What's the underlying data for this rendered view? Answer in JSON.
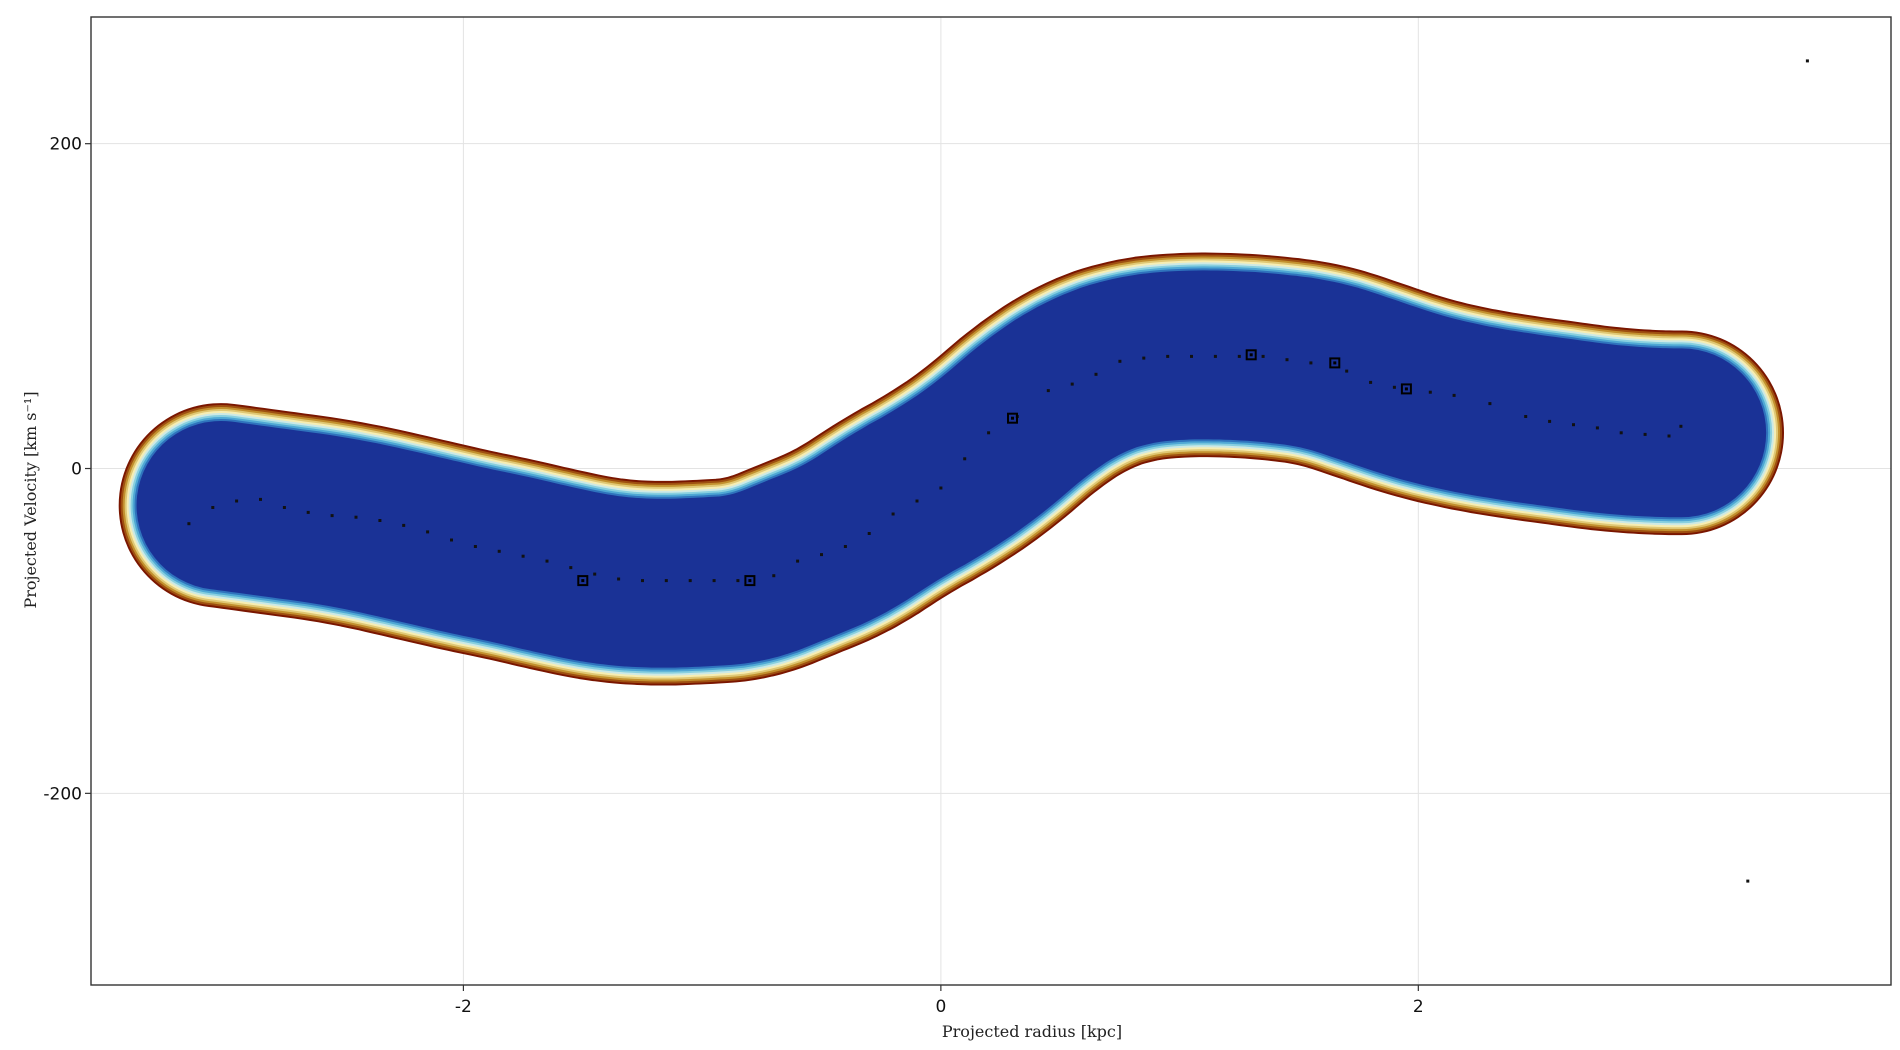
{
  "chart_data": {
    "type": "contour",
    "title": "",
    "xlabel": "Projected radius [kpc]",
    "ylabel": "Projected Velocity [km s⁻¹]",
    "xlim": [
      -3.56,
      3.98
    ],
    "ylim": [
      -318,
      278
    ],
    "x_ticks": [
      -2,
      0,
      2
    ],
    "x_tick_labels": [
      "-2",
      "0",
      "2"
    ],
    "y_ticks": [
      -200,
      0,
      200
    ],
    "y_tick_labels": [
      "-200",
      "0",
      "200"
    ],
    "grid": true,
    "legend": "none",
    "colormap": [
      "#7a1600",
      "#9e4f10",
      "#c2902e",
      "#e0c874",
      "#f6edb3",
      "#cde9e4",
      "#88d0e0",
      "#4fa8d4",
      "#2f73bd",
      "#1a3296"
    ],
    "band_centerline": [
      [
        -3.05,
        -22
      ],
      [
        -2.8,
        -27
      ],
      [
        -2.5,
        -33
      ],
      [
        -2.2,
        -43
      ],
      [
        -2.0,
        -50
      ],
      [
        -1.8,
        -56
      ],
      [
        -1.6,
        -63
      ],
      [
        -1.4,
        -69
      ],
      [
        -1.2,
        -71
      ],
      [
        -1.0,
        -70
      ],
      [
        -0.8,
        -68
      ],
      [
        -0.6,
        -56
      ],
      [
        -0.4,
        -44
      ],
      [
        -0.2,
        -24
      ],
      [
        0.0,
        -8
      ],
      [
        0.2,
        12
      ],
      [
        0.4,
        38
      ],
      [
        0.6,
        57
      ],
      [
        0.8,
        67
      ],
      [
        1.0,
        70
      ],
      [
        1.2,
        70
      ],
      [
        1.4,
        68
      ],
      [
        1.6,
        64
      ],
      [
        1.8,
        54
      ],
      [
        2.0,
        44
      ],
      [
        2.2,
        37
      ],
      [
        2.4,
        32
      ],
      [
        2.6,
        28
      ],
      [
        2.8,
        24
      ],
      [
        3.0,
        22
      ],
      [
        3.12,
        22
      ]
    ],
    "band_halfwidth_inner": 52,
    "band_halfwidth_outer": 63,
    "rotation_curve_points": [
      [
        -3.15,
        -34
      ],
      [
        -3.05,
        -24
      ],
      [
        -2.95,
        -20
      ],
      [
        -2.85,
        -19
      ],
      [
        -2.75,
        -24
      ],
      [
        -2.65,
        -27
      ],
      [
        -2.55,
        -29
      ],
      [
        -2.45,
        -30
      ],
      [
        -2.35,
        -32
      ],
      [
        -2.25,
        -35
      ],
      [
        -2.15,
        -39
      ],
      [
        -2.05,
        -44
      ],
      [
        -1.95,
        -48
      ],
      [
        -1.85,
        -51
      ],
      [
        -1.75,
        -54
      ],
      [
        -1.65,
        -57
      ],
      [
        -1.55,
        -61
      ],
      [
        -1.45,
        -65
      ],
      [
        -1.35,
        -68
      ],
      [
        -1.25,
        -69
      ],
      [
        -1.15,
        -69
      ],
      [
        -1.05,
        -69
      ],
      [
        -0.95,
        -69
      ],
      [
        -0.85,
        -69
      ],
      [
        -0.7,
        -66
      ],
      [
        -0.6,
        -57
      ],
      [
        -0.5,
        -53
      ],
      [
        -0.4,
        -48
      ],
      [
        -0.3,
        -40
      ],
      [
        -0.2,
        -28
      ],
      [
        -0.1,
        -20
      ],
      [
        0.0,
        -12
      ],
      [
        0.1,
        6
      ],
      [
        0.2,
        22
      ],
      [
        0.32,
        32
      ],
      [
        0.45,
        48
      ],
      [
        0.55,
        52
      ],
      [
        0.65,
        58
      ],
      [
        0.75,
        66
      ],
      [
        0.85,
        68
      ],
      [
        0.95,
        69
      ],
      [
        1.05,
        69
      ],
      [
        1.15,
        69
      ],
      [
        1.25,
        69
      ],
      [
        1.35,
        69
      ],
      [
        1.45,
        67
      ],
      [
        1.55,
        65
      ],
      [
        1.7,
        60
      ],
      [
        1.8,
        53
      ],
      [
        1.9,
        50
      ],
      [
        2.05,
        47
      ],
      [
        2.15,
        45
      ],
      [
        2.3,
        40
      ],
      [
        2.45,
        32
      ],
      [
        2.55,
        29
      ],
      [
        2.65,
        27
      ],
      [
        2.75,
        25
      ],
      [
        2.85,
        22
      ],
      [
        2.95,
        21
      ],
      [
        3.05,
        20
      ],
      [
        3.1,
        26
      ],
      [
        3.38,
        -254
      ],
      [
        3.63,
        251
      ]
    ],
    "highlighted_points": [
      [
        -1.5,
        -69
      ],
      [
        -0.8,
        -69
      ],
      [
        0.3,
        31
      ],
      [
        1.3,
        70
      ],
      [
        1.65,
        65
      ],
      [
        1.95,
        49
      ]
    ]
  }
}
